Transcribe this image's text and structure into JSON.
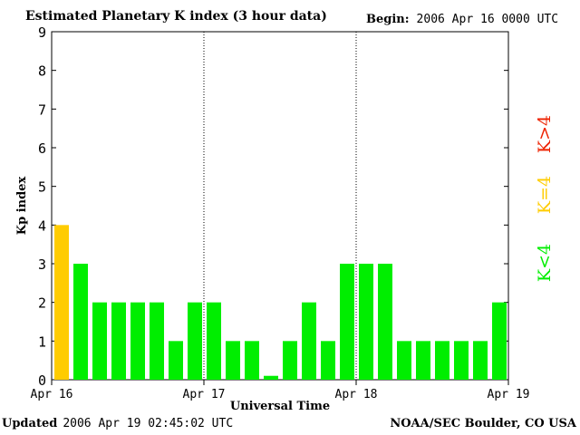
{
  "header": {
    "title": "Estimated Planetary K index (3 hour data)",
    "begin_label": "Begin:",
    "begin_value": "2006 Apr 16 0000 UTC"
  },
  "footer": {
    "updated_label": "Updated",
    "updated_value": "2006 Apr 19 02:45:02 UTC",
    "source": "NOAA/SEC Boulder, CO USA"
  },
  "legend": [
    {
      "label": "K<4",
      "color": "#00ee00"
    },
    {
      "label": "K=4",
      "color": "#ffcc00"
    },
    {
      "label": "K>4",
      "color": "#ee2200"
    }
  ],
  "chart_data": {
    "type": "bar",
    "title": "Estimated Planetary K index (3 hour data)",
    "xlabel": "Universal Time",
    "ylabel": "Kp index",
    "ylim": [
      0,
      9
    ],
    "yticks": [
      0,
      1,
      2,
      3,
      4,
      5,
      6,
      7,
      8,
      9
    ],
    "xtick_labels": [
      "Apr 16",
      "Apr 17",
      "Apr 18",
      "Apr 19"
    ],
    "interval_hours": 3,
    "values": [
      4,
      3,
      2,
      2,
      2,
      2,
      1,
      2,
      2,
      1,
      1,
      0.1,
      1,
      2,
      1,
      3,
      3,
      3,
      1,
      1,
      1,
      1,
      1,
      2
    ],
    "colors": {
      "low": "#00ee00",
      "equal": "#ffcc00",
      "high": "#ee2200"
    },
    "grid": "dotted vertical lines at day boundaries"
  }
}
